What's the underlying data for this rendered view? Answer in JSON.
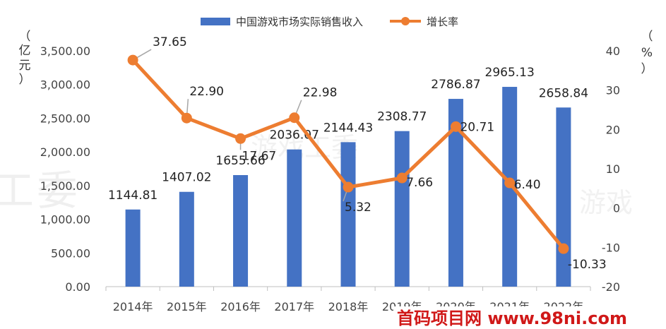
{
  "chart_data": {
    "type": "bar+line",
    "categories": [
      "2014年",
      "2015年",
      "2016年",
      "2017年",
      "2018年",
      "2019年",
      "2020年",
      "2021年",
      "2022年"
    ],
    "series": [
      {
        "name": "中国游戏市场实际销售收入",
        "kind": "bar",
        "axis": "left",
        "color": "#4472C4",
        "values": [
          1144.81,
          1407.02,
          1655.66,
          2036.07,
          2144.43,
          2308.77,
          2786.87,
          2965.13,
          2658.84
        ],
        "labels": [
          "1144.81",
          "1407.02",
          "1655.66",
          "2036.07",
          "2144.43",
          "2308.77",
          "2786.87",
          "2965.13",
          "2658.84"
        ]
      },
      {
        "name": "增长率",
        "kind": "line",
        "axis": "right",
        "color": "#ED7D31",
        "values": [
          37.65,
          22.9,
          17.67,
          22.98,
          5.32,
          7.66,
          20.71,
          6.4,
          -10.33
        ],
        "labels": [
          "37.65",
          "22.90",
          "17.67",
          "22.98",
          "5.32",
          "7.66",
          "20.71",
          "6.40",
          "-10.33"
        ]
      }
    ],
    "y_left": {
      "label": [
        "（",
        "亿",
        "元",
        "）"
      ],
      "ylim": [
        0,
        3500
      ],
      "ticks": [
        "0.00",
        "500.00",
        "1,000.00",
        "1,500.00",
        "2,000.00",
        "2,500.00",
        "3,000.00",
        "3,500.00"
      ]
    },
    "y_right": {
      "label": [
        "（",
        "%",
        "）"
      ],
      "ylim": [
        -20,
        40
      ],
      "ticks": [
        "-20",
        "-10",
        "0",
        "10",
        "20",
        "30",
        "40"
      ]
    },
    "legend_position": "top-center",
    "grid": false
  },
  "watermarks": {
    "main": [
      "工",
      "委"
    ],
    "center": "游戏工委",
    "right": "游戏",
    "corner": "首码项目网 www.98ni.com"
  }
}
